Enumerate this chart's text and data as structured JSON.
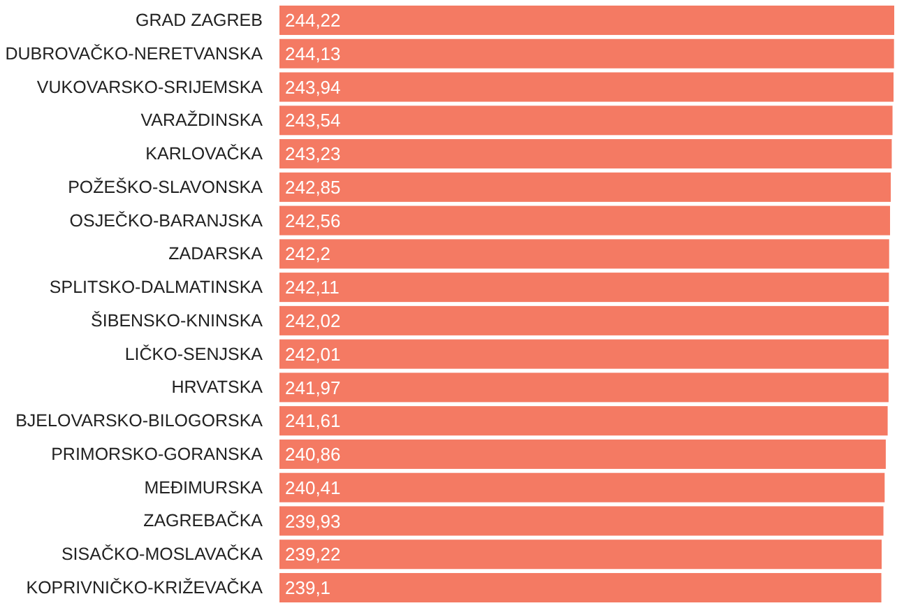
{
  "chart_data": {
    "type": "bar",
    "orientation": "horizontal",
    "categories": [
      "GRAD ZAGREB",
      "DUBROVAČKO-NERETVANSKA",
      "VUKOVARSKO-SRIJEMSKA",
      "VARAŽDINSKA",
      "KARLOVAČKA",
      "POŽEŠKO-SLAVONSKA",
      "OSJEČKO-BARANJSKA",
      "ZADARSKA",
      "SPLITSKO-DALMATINSKA",
      "ŠIBENSKO-KNINSKA",
      "LIČKO-SENJSKA",
      "HRVATSKA",
      "BJELOVARSKO-BILOGORSKA",
      "PRIMORSKO-GORANSKA",
      "MEĐIMURSKA",
      "ZAGREBAČKA",
      "SISAČKO-MOSLAVAČKA",
      "KOPRIVNIČKO-KRIŽEVAČKA"
    ],
    "values": [
      244.22,
      244.13,
      243.94,
      243.54,
      243.23,
      242.85,
      242.56,
      242.2,
      242.11,
      242.02,
      242.01,
      241.97,
      241.61,
      240.86,
      240.41,
      239.93,
      239.22,
      239.1
    ],
    "value_labels": [
      "244,22",
      "244,13",
      "243,94",
      "243,54",
      "243,23",
      "242,85",
      "242,56",
      "242,2",
      "242,11",
      "242,02",
      "242,01",
      "241,97",
      "241,61",
      "240,86",
      "240,41",
      "239,93",
      "239,22",
      "239,1"
    ],
    "color": "#f47a63"
  }
}
